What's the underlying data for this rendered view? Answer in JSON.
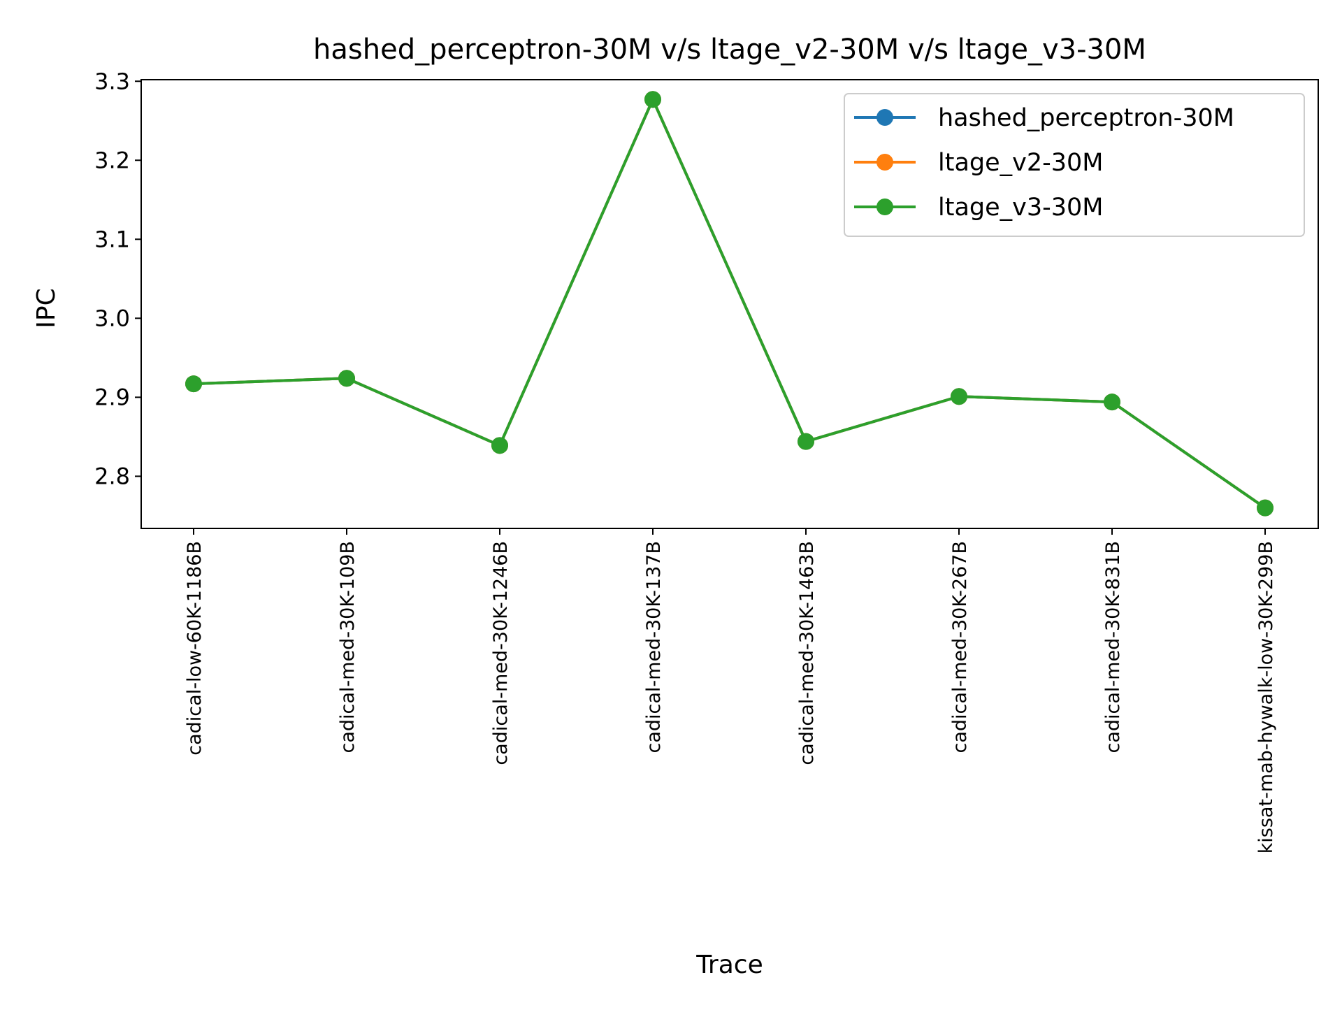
{
  "chart_data": {
    "type": "line",
    "title": "hashed_perceptron-30M v/s ltage_v2-30M v/s ltage_v3-30M",
    "xlabel": "Trace",
    "ylabel": "IPC",
    "categories": [
      "cadical-low-60K-1186B",
      "cadical-med-30K-109B",
      "cadical-med-30K-1246B",
      "cadical-med-30K-137B",
      "cadical-med-30K-1463B",
      "cadical-med-30K-267B",
      "cadical-med-30K-831B",
      "kissat-mab-hywalk-low-30K-299B"
    ],
    "ylim": [
      2.734,
      3.302
    ],
    "yticks": [
      2.8,
      2.9,
      3.0,
      3.1,
      3.2,
      3.3
    ],
    "ytick_labels": [
      "2.8",
      "2.9",
      "3.0",
      "3.1",
      "3.2",
      "3.3"
    ],
    "grid": false,
    "legend_position": "upper right",
    "marker": "circle",
    "series": [
      {
        "name": "hashed_perceptron-30M",
        "color": "#1f77b4",
        "values": [
          2.917,
          2.924,
          2.839,
          3.277,
          2.844,
          2.901,
          2.894,
          2.76
        ]
      },
      {
        "name": "ltage_v2-30M",
        "color": "#ff7f0e",
        "values": [
          2.917,
          2.924,
          2.839,
          3.277,
          2.844,
          2.901,
          2.894,
          2.76
        ]
      },
      {
        "name": "ltage_v3-30M",
        "color": "#2ca02c",
        "values": [
          2.917,
          2.924,
          2.839,
          3.277,
          2.844,
          2.901,
          2.894,
          2.76
        ]
      }
    ]
  }
}
